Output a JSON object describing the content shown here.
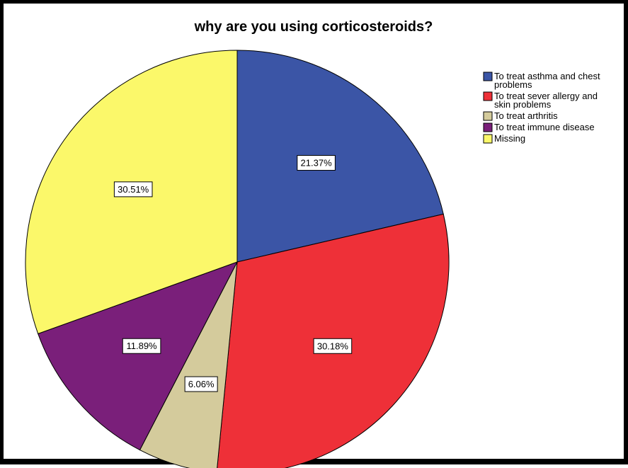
{
  "chart_data": {
    "type": "pie",
    "title": "why are you using corticosteroids?",
    "slices": [
      {
        "label_lines": [
          "To treat asthma and chest",
          "problems"
        ],
        "value": 21.37,
        "display": "21.37%",
        "color": "#3b55a6"
      },
      {
        "label_lines": [
          "To treat sever allergy and",
          "skin problems"
        ],
        "value": 30.18,
        "display": "30.18%",
        "color": "#ee3038"
      },
      {
        "label_lines": [
          "To treat arthritis"
        ],
        "value": 6.06,
        "display": "6.06%",
        "color": "#d4cb9c"
      },
      {
        "label_lines": [
          "To treat immune disease"
        ],
        "value": 11.89,
        "display": "11.89%",
        "color": "#7a1f7a"
      },
      {
        "label_lines": [
          "Missing"
        ],
        "value": 30.51,
        "display": "30.51%",
        "color": "#fbf86a"
      }
    ],
    "start_angle": "12 o'clock",
    "direction": "clockwise",
    "legend_position": "top-right"
  }
}
